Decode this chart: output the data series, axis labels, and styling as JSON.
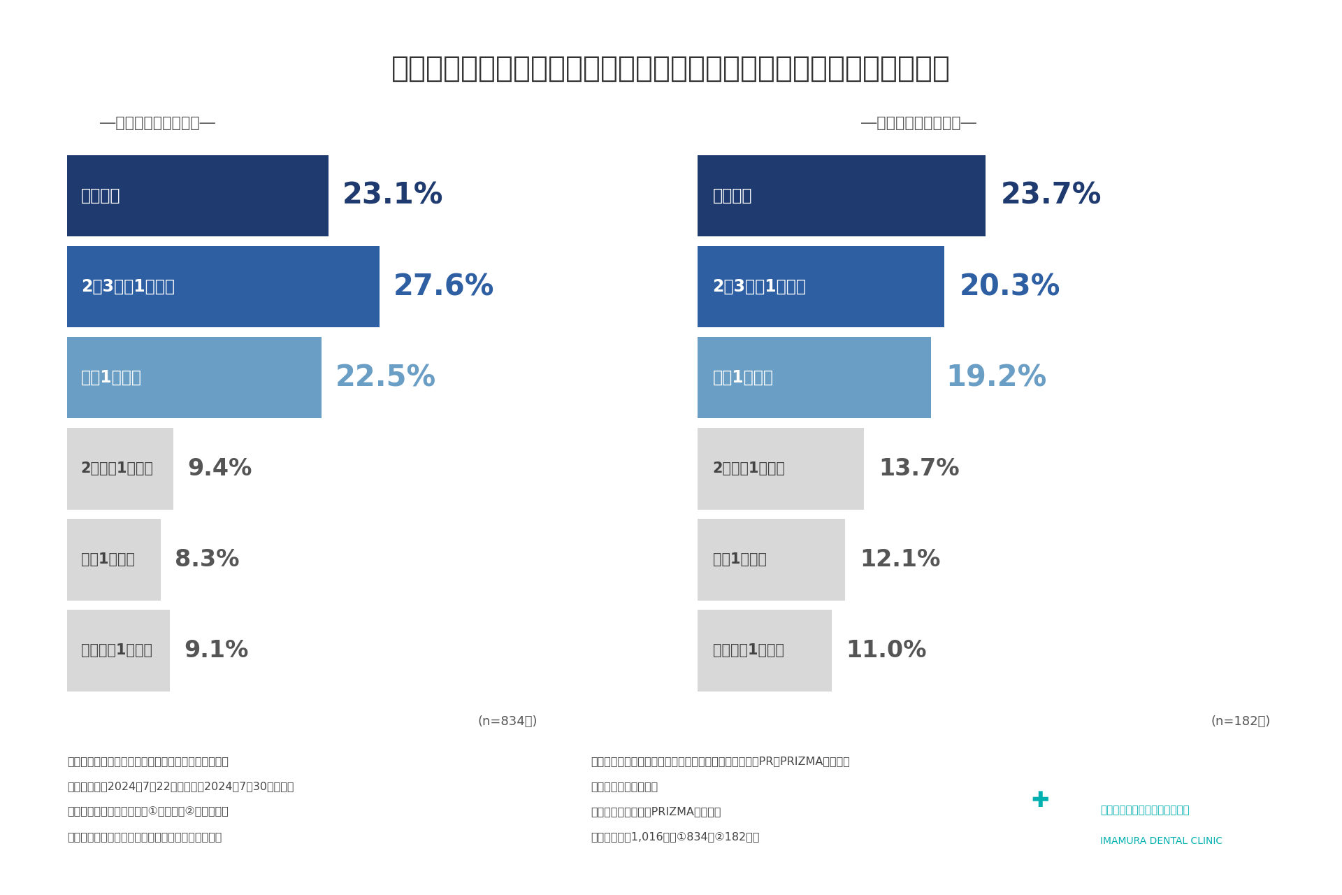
{
  "title": "普段フルーツやワイン、果物ジュースなどをどのくらい摄取しますか？",
  "subtitle_left": "―東京在住の方が回答―",
  "subtitle_right": "―山梨在住の方が回答―",
  "left_labels": [
    "ほぼ毎日",
    "2、3日に1回程度",
    "週に1回程度",
    "2週間に1回程度",
    "月に1回程度",
    "数か月に1回以下"
  ],
  "left_values": [
    23.1,
    27.6,
    22.5,
    9.4,
    8.3,
    9.1
  ],
  "right_labels": [
    "ほぼ毎日",
    "2、3日に1回程度",
    "週に1回程度",
    "2週間に1回程度",
    "月に1回程度",
    "数か月に1回以下"
  ],
  "right_values": [
    23.7,
    20.3,
    19.2,
    13.7,
    12.1,
    11.0
  ],
  "left_n": "(n=834人)",
  "right_n": "(n=182人)",
  "bar_colors": [
    "#1e3a6e",
    "#2e5fa3",
    "#6a9ec5",
    "#d8d8d8",
    "#d8d8d8",
    "#d8d8d8"
  ],
  "value_colors": [
    "#1e3a6e",
    "#2e5fa3",
    "#6a9ec5",
    "#555555",
    "#555555",
    "#555555"
  ],
  "bg_color": "#ffffff",
  "header_bg": "#1e3a6e",
  "title_color": "#333333",
  "subtitle_color": "#555555",
  "footer_color": "#444444",
  "footer_lines_left": [
    "《調査概要：「果物とオーラルケア」に関する調査》",
    "・調査期間：2024年7月22日（月）～2024年7月30日（火）",
    "・調査対象：調査回答時に①東京在住②山梨在住の",
    "　ホワイトニング経験者であると回答したモニター"
  ],
  "footer_lines_right": [
    "・調査方法：リンクアンドパートナーズが提供する調査PR「PRIZMA」による",
    "　インターネット調査",
    "・モニター提供元：PRIZMAリサーチ",
    "・調査人数：1,016人（①834人②182人）"
  ],
  "logo_line1": "今村歯科・矯正歯科クリニック",
  "logo_line2": "IMAMURA DENTAL CLINIC",
  "logo_color": "#00b0b0"
}
